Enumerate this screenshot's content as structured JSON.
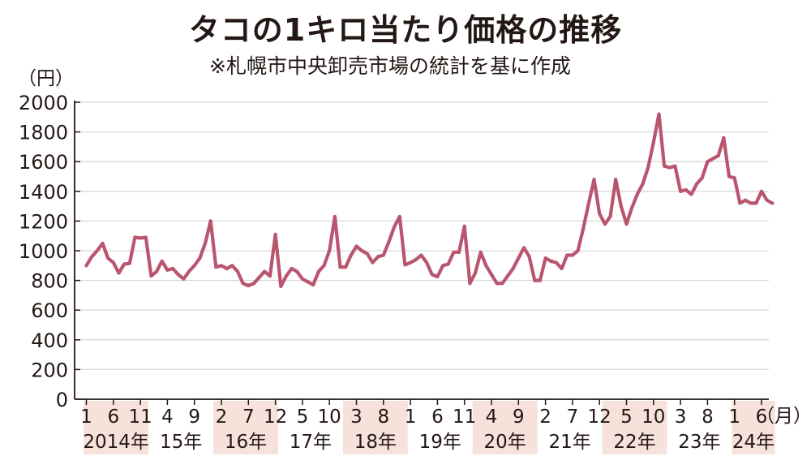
{
  "title": "タコの1キロ当たり価格の推移",
  "note": "※札幌市中央卸売市場の統計を基に作成",
  "chart_data": {
    "type": "line",
    "title": "タコの1キロ当たり価格の推移",
    "ylabel": "（円）",
    "xlabel": "",
    "month_unit": "（月）",
    "ylim": [
      0,
      2000
    ],
    "yticks": [
      0,
      200,
      400,
      600,
      800,
      1000,
      1200,
      1400,
      1600,
      1800,
      2000
    ],
    "grid": true,
    "line_color": "#b9566f",
    "band_color": "#f6e2da",
    "month_ticks": [
      {
        "i": 0,
        "label": "1"
      },
      {
        "i": 5,
        "label": "6"
      },
      {
        "i": 10,
        "label": "11"
      },
      {
        "i": 15,
        "label": "4"
      },
      {
        "i": 20,
        "label": "9"
      },
      {
        "i": 25,
        "label": "2"
      },
      {
        "i": 30,
        "label": "7"
      },
      {
        "i": 35,
        "label": "12"
      },
      {
        "i": 40,
        "label": "5"
      },
      {
        "i": 45,
        "label": "10"
      },
      {
        "i": 50,
        "label": "3"
      },
      {
        "i": 55,
        "label": "8"
      },
      {
        "i": 60,
        "label": "1"
      },
      {
        "i": 65,
        "label": "6"
      },
      {
        "i": 70,
        "label": "11"
      },
      {
        "i": 75,
        "label": "4"
      },
      {
        "i": 80,
        "label": "9"
      },
      {
        "i": 85,
        "label": "2"
      },
      {
        "i": 90,
        "label": "7"
      },
      {
        "i": 95,
        "label": "12"
      },
      {
        "i": 100,
        "label": "5"
      },
      {
        "i": 105,
        "label": "10"
      },
      {
        "i": 110,
        "label": "3"
      },
      {
        "i": 115,
        "label": "8"
      },
      {
        "i": 120,
        "label": "1"
      },
      {
        "i": 125,
        "label": "6"
      }
    ],
    "year_labels": [
      "2014年",
      "15年",
      "16年",
      "17年",
      "18年",
      "19年",
      "20年",
      "21年",
      "22年",
      "23年",
      "24年"
    ],
    "series": [
      {
        "name": "タコ1キロ当たり価格",
        "values": [
          900,
          960,
          1000,
          1050,
          950,
          920,
          850,
          910,
          915,
          1090,
          1085,
          1090,
          830,
          860,
          930,
          870,
          880,
          840,
          810,
          860,
          900,
          950,
          1050,
          1200,
          890,
          900,
          880,
          900,
          860,
          780,
          765,
          780,
          820,
          860,
          830,
          1110,
          760,
          830,
          880,
          860,
          810,
          790,
          770,
          860,
          900,
          1000,
          1230,
          890,
          890,
          970,
          1030,
          1000,
          980,
          920,
          960,
          970,
          1060,
          1160,
          1230,
          905,
          920,
          940,
          970,
          920,
          840,
          825,
          900,
          910,
          990,
          990,
          1165,
          780,
          850,
          990,
          900,
          840,
          780,
          780,
          830,
          880,
          950,
          1020,
          960,
          800,
          800,
          950,
          930,
          920,
          880,
          970,
          970,
          1000,
          1150,
          1320,
          1480,
          1250,
          1180,
          1230,
          1480,
          1300,
          1180,
          1290,
          1380,
          1450,
          1560,
          1730,
          1920,
          1570,
          1560,
          1570,
          1400,
          1410,
          1380,
          1450,
          1490,
          1600,
          1620,
          1640,
          1760,
          1500,
          1490,
          1320,
          1340,
          1320,
          1320,
          1400,
          1340,
          1320
        ]
      }
    ]
  }
}
